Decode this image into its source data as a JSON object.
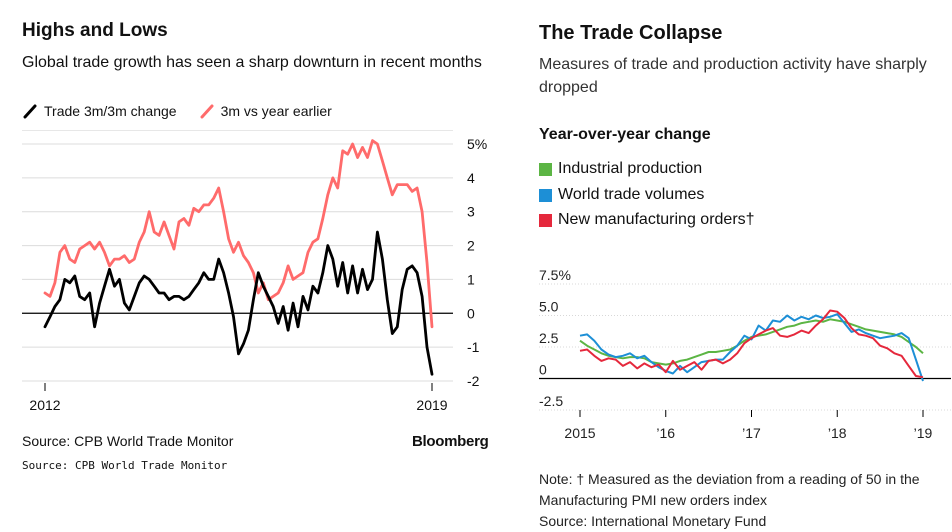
{
  "left": {
    "title": "Highs and Lows",
    "subtitle": "Global trade growth has seen a sharp downturn in recent months",
    "source": "Source: CPB World Trade Monitor",
    "source_repeat": "Source: CPB World Trade Monitor",
    "brand": "Bloomberg"
  },
  "right": {
    "title": "The Trade Collapse",
    "subtitle": "Measures of trade and production activity have sharply dropped",
    "chart_title": "Year-over-year change",
    "note": "Note: † Measured as the deviation from a reading of 50 in the Manufacturing PMI new orders index",
    "source": "Source: International Monetary Fund"
  },
  "chart_data": [
    {
      "type": "line",
      "title": "Highs and Lows",
      "x_start": 2012.0,
      "x_end": 2019.0,
      "xticks": [
        "2012",
        "2019"
      ],
      "yticks": [
        "5%",
        "4",
        "3",
        "2",
        "1",
        "0",
        "-1",
        "-2"
      ],
      "ylim": [
        -2,
        5
      ],
      "grid": true,
      "legend": "top",
      "series": [
        {
          "name": "Trade 3m/3m change",
          "color": "#000000",
          "values": [
            -0.4,
            -0.1,
            0.2,
            0.4,
            1.0,
            0.9,
            1.1,
            0.5,
            0.4,
            0.6,
            -0.4,
            0.3,
            0.8,
            1.3,
            0.8,
            1.0,
            0.3,
            0.1,
            0.5,
            0.9,
            1.1,
            1.0,
            0.8,
            0.6,
            0.6,
            0.4,
            0.5,
            0.5,
            0.4,
            0.5,
            0.7,
            0.9,
            1.2,
            1.0,
            1.0,
            1.6,
            1.2,
            0.6,
            -0.1,
            -1.2,
            -0.9,
            -0.5,
            0.4,
            1.2,
            0.8,
            0.5,
            0.2,
            -0.3,
            0.2,
            -0.5,
            0.3,
            -0.4,
            0.5,
            0.1,
            0.8,
            0.6,
            1.2,
            2.0,
            1.6,
            0.8,
            1.5,
            0.6,
            1.4,
            0.6,
            1.3,
            0.7,
            1.0,
            2.4,
            1.6,
            0.4,
            -0.6,
            -0.4,
            0.7,
            1.3,
            1.4,
            1.2,
            0.5,
            -1.0,
            -1.8
          ]
        },
        {
          "name": "3m vs year earlier",
          "color": "#ff6b6b",
          "values": [
            0.6,
            0.5,
            0.9,
            1.8,
            2.0,
            1.6,
            1.5,
            1.9,
            2.0,
            2.1,
            1.9,
            2.1,
            1.8,
            1.4,
            1.6,
            1.6,
            1.7,
            1.5,
            1.6,
            2.1,
            2.4,
            3.0,
            2.4,
            2.3,
            2.7,
            2.3,
            1.9,
            2.7,
            2.8,
            2.6,
            3.1,
            3.0,
            3.2,
            3.2,
            3.4,
            3.7,
            3.0,
            2.2,
            1.8,
            2.1,
            1.7,
            1.5,
            1.2,
            0.6,
            0.9,
            0.4,
            0.5,
            0.6,
            0.9,
            1.4,
            1.0,
            1.1,
            1.2,
            1.8,
            2.1,
            2.2,
            2.8,
            3.5,
            4.0,
            3.7,
            4.8,
            4.7,
            5.0,
            4.6,
            4.9,
            4.6,
            5.1,
            5.0,
            4.5,
            4.0,
            3.5,
            3.8,
            3.8,
            3.8,
            3.6,
            3.7,
            3.0,
            1.5,
            -0.4
          ]
        }
      ]
    },
    {
      "type": "line",
      "title": "Year-over-year change",
      "x_start": 2015.0,
      "x_end": 2019.0,
      "xticks": [
        "2015",
        "’16",
        "’17",
        "’18",
        "’19"
      ],
      "yticks": [
        "7.5%",
        "5.0",
        "2.5",
        "0",
        "-2.5"
      ],
      "ylim": [
        -2.5,
        7.5
      ],
      "grid": true,
      "legend": "top",
      "series": [
        {
          "name": "Industrial production",
          "color": "#5cb544",
          "values": [
            3.0,
            2.6,
            2.3,
            2.0,
            1.8,
            1.7,
            1.6,
            1.7,
            1.7,
            1.6,
            1.3,
            1.2,
            1.1,
            1.2,
            1.4,
            1.5,
            1.7,
            1.9,
            2.1,
            2.1,
            2.2,
            2.3,
            2.6,
            3.0,
            3.3,
            3.4,
            3.5,
            3.7,
            3.9,
            4.1,
            4.2,
            4.4,
            4.5,
            4.6,
            4.5,
            4.7,
            4.6,
            4.5,
            4.3,
            4.1,
            3.9,
            3.8,
            3.7,
            3.6,
            3.5,
            3.3,
            2.9,
            2.5,
            2.0
          ]
        },
        {
          "name": "World trade volumes",
          "color": "#1d8fd6",
          "values": [
            3.4,
            3.5,
            3.0,
            2.3,
            1.9,
            1.7,
            1.8,
            2.0,
            1.6,
            1.8,
            1.3,
            0.9,
            0.6,
            0.4,
            1.0,
            0.5,
            0.9,
            1.3,
            1.4,
            1.5,
            1.5,
            2.1,
            2.6,
            3.4,
            3.1,
            4.2,
            3.8,
            4.6,
            4.5,
            5.0,
            4.6,
            4.9,
            4.7,
            5.0,
            4.8,
            4.9,
            5.1,
            4.4,
            3.7,
            3.9,
            3.6,
            3.4,
            3.2,
            3.3,
            3.4,
            3.6,
            3.2,
            1.5,
            -0.2
          ]
        },
        {
          "name": "New manufacturing orders†",
          "color": "#e5283c",
          "values": [
            2.2,
            2.3,
            1.8,
            1.4,
            1.6,
            1.5,
            1.0,
            1.3,
            0.8,
            1.2,
            0.9,
            1.1,
            0.5,
            1.4,
            0.7,
            1.0,
            1.3,
            0.7,
            1.4,
            1.5,
            1.2,
            1.5,
            2.0,
            2.8,
            3.2,
            3.5,
            3.8,
            4.0,
            3.4,
            3.3,
            3.5,
            3.8,
            3.6,
            4.2,
            4.7,
            5.4,
            5.3,
            4.8,
            4.0,
            3.5,
            3.4,
            3.2,
            2.6,
            2.4,
            2.0,
            1.8,
            1.0,
            0.2,
            0.1
          ]
        }
      ]
    }
  ]
}
